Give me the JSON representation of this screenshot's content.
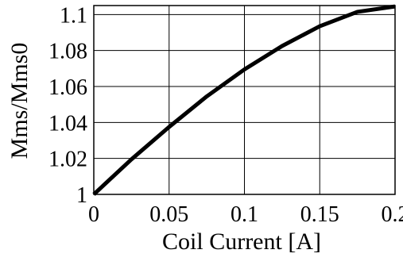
{
  "chart_data": {
    "type": "line",
    "title": "",
    "xlabel": "Coil Current [A]",
    "ylabel": "Mms/Mms0",
    "xlim": [
      0,
      0.2
    ],
    "ylim": [
      1.0,
      1.105
    ],
    "grid": true,
    "legend": "none",
    "x_ticks": [
      {
        "value": 0,
        "label": "0"
      },
      {
        "value": 0.05,
        "label": "0.05"
      },
      {
        "value": 0.1,
        "label": "0.1"
      },
      {
        "value": 0.15,
        "label": "0.15"
      },
      {
        "value": 0.2,
        "label": "0.2"
      }
    ],
    "y_ticks": [
      {
        "value": 1.0,
        "label": "1"
      },
      {
        "value": 1.02,
        "label": "1.02"
      },
      {
        "value": 1.04,
        "label": "1.04"
      },
      {
        "value": 1.06,
        "label": "1.06"
      },
      {
        "value": 1.08,
        "label": "1.08"
      },
      {
        "value": 1.1,
        "label": "1.1"
      }
    ],
    "series": [
      {
        "x": [
          0,
          0.025,
          0.05,
          0.075,
          0.1,
          0.125,
          0.15,
          0.175,
          0.2
        ],
        "y": [
          1.0,
          1.0195,
          1.0375,
          1.0545,
          1.0695,
          1.0825,
          1.0935,
          1.1015,
          1.1045
        ]
      }
    ],
    "colors": {
      "line": "#000000",
      "grid": "#000000",
      "frame": "#000000",
      "background": "#ffffff"
    }
  }
}
